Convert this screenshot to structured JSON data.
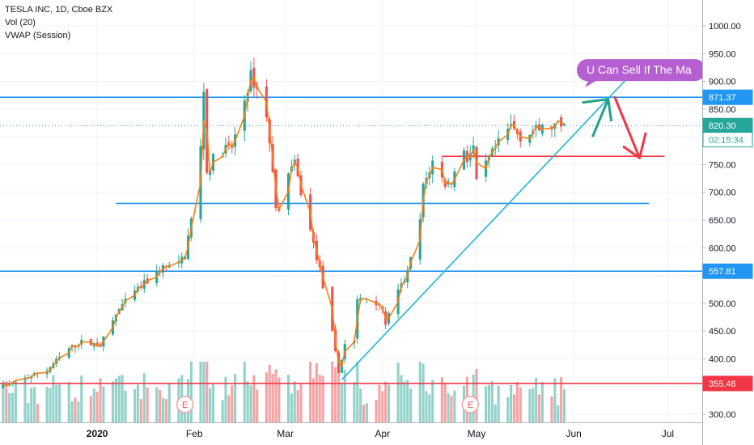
{
  "header": {
    "symbol": "TESLA INC, 1D, Cboe BZX",
    "indicator_volume": "Vol (20)",
    "indicator_vwap": "VWAP (Session)"
  },
  "colors": {
    "up": "#26a69a",
    "down": "#ef5350",
    "vol_up": "#93d2cb",
    "vol_down": "#f5a3a3",
    "vwap": "#ff7f0e",
    "hline_blue": "#2196f3",
    "hline_red": "#f23645",
    "trendline": "#22b5d6",
    "last_price": "#26a69a",
    "annotation_bg": "#b55fd0",
    "arrow_up": "#1fa38c",
    "arrow_down": "#f23645",
    "grid": "#f0f3fa",
    "axis_text": "#131722"
  },
  "chart_data": {
    "type": "candlestick",
    "y_axis": {
      "ticks": [
        "1000.00",
        "950.00",
        "900.00",
        "850.00",
        "800.00",
        "750.00",
        "700.00",
        "650.00",
        "600.00",
        "550.00",
        "500.00",
        "450.00",
        "400.00",
        "350.00",
        "300.00"
      ],
      "tick_values": [
        1000,
        950,
        900,
        850,
        800,
        750,
        700,
        650,
        600,
        550,
        500,
        450,
        400,
        350,
        300
      ],
      "ylim": [
        290,
        1045
      ]
    },
    "x_axis": {
      "labels": [
        "2020",
        "Feb",
        "Mar",
        "Apr",
        "May",
        "Jun",
        "Jul"
      ],
      "label_dates": [
        "2020-01-01",
        "2020-02-01",
        "2020-03-01",
        "2020-04-01",
        "2020-05-01",
        "2020-06-01",
        "2020-07-01"
      ],
      "xlim": [
        "2019-12-01",
        "2020-07-12"
      ]
    },
    "price_labels": [
      {
        "text": "871.37",
        "value": 871.37,
        "color": "#2196f3"
      },
      {
        "text": "820.30",
        "value": 820.3,
        "color": "#26a69a"
      },
      {
        "text": "02:15:34",
        "value": 795,
        "color": "#ffffff",
        "text_color": "#26a69a",
        "border": "#26a69a"
      },
      {
        "text": "557.81",
        "value": 557.81,
        "color": "#2196f3"
      },
      {
        "text": "355.46",
        "value": 355.46,
        "color": "#f23645"
      }
    ],
    "horizontal_lines": [
      {
        "value": 871.37,
        "start": "2019-12-01",
        "end": "2020-07-12",
        "color": "#2196f3"
      },
      {
        "value": 557.81,
        "start": "2019-12-01",
        "end": "2020-07-12",
        "color": "#2196f3"
      },
      {
        "value": 355.46,
        "start": "2019-12-01",
        "end": "2020-07-12",
        "color": "#f23645"
      },
      {
        "value": 680,
        "start": "2020-01-07",
        "end": "2020-06-25",
        "color": "#2196f3"
      },
      {
        "value": 765,
        "start": "2020-04-20",
        "end": "2020-06-30",
        "color": "#f23645"
      }
    ],
    "trendline": {
      "from": [
        "2020-03-19",
        362
      ],
      "to": [
        "2020-06-18",
        905
      ]
    },
    "arrow_up": {
      "points": [
        [
          "2020-06-07",
          800
        ],
        [
          "2020-06-12",
          868
        ],
        [
          "2020-06-04",
          862
        ],
        [
          "2020-06-12",
          868
        ],
        [
          "2020-06-13",
          828
        ]
      ]
    },
    "arrow_down": {
      "points": [
        [
          "2020-06-14",
          873
        ],
        [
          "2020-06-22",
          762
        ],
        [
          "2020-06-17",
          782
        ],
        [
          "2020-06-22",
          762
        ],
        [
          "2020-06-24",
          808
        ]
      ]
    },
    "annotation": {
      "text": "U Can Sell If The Ma",
      "date": "2020-06-02",
      "value": 921
    },
    "event_markers": [
      {
        "label": "E",
        "date": "2020-01-29"
      },
      {
        "label": "E",
        "date": "2020-04-29"
      }
    ],
    "price_anchors": [
      [
        "2019-12-02",
        350
      ],
      [
        "2019-12-09",
        365
      ],
      [
        "2019-12-16",
        380
      ],
      [
        "2019-12-23",
        418
      ],
      [
        "2019-12-27",
        430
      ],
      [
        "2020-01-02",
        425
      ],
      [
        "2020-01-08",
        490
      ],
      [
        "2020-01-13",
        520
      ],
      [
        "2020-01-22",
        565
      ],
      [
        "2020-01-27",
        570
      ],
      [
        "2020-01-29",
        590
      ],
      [
        "2020-01-31",
        650
      ],
      [
        "2020-02-03",
        780
      ],
      [
        "2020-02-04",
        887
      ],
      [
        "2020-02-05",
        735
      ],
      [
        "2020-02-07",
        760
      ],
      [
        "2020-02-11",
        780
      ],
      [
        "2020-02-13",
        780
      ],
      [
        "2020-02-19",
        910
      ],
      [
        "2020-02-21",
        885
      ],
      [
        "2020-02-24",
        840
      ],
      [
        "2020-02-27",
        680
      ],
      [
        "2020-02-28",
        660
      ],
      [
        "2020-03-02",
        740
      ],
      [
        "2020-03-04",
        750
      ],
      [
        "2020-03-06",
        700
      ],
      [
        "2020-03-09",
        630
      ],
      [
        "2020-03-12",
        560
      ],
      [
        "2020-03-16",
        445
      ],
      [
        "2020-03-18",
        375
      ],
      [
        "2020-03-20",
        427
      ],
      [
        "2020-03-23",
        434
      ],
      [
        "2020-03-24",
        505
      ],
      [
        "2020-03-27",
        510
      ],
      [
        "2020-03-31",
        500
      ],
      [
        "2020-04-02",
        465
      ],
      [
        "2020-04-06",
        520
      ],
      [
        "2020-04-09",
        555
      ],
      [
        "2020-04-13",
        650
      ],
      [
        "2020-04-14",
        710
      ],
      [
        "2020-04-17",
        755
      ],
      [
        "2020-04-21",
        715
      ],
      [
        "2020-04-23",
        720
      ],
      [
        "2020-04-27",
        780
      ],
      [
        "2020-04-28",
        760
      ],
      [
        "2020-04-30",
        780
      ],
      [
        "2020-05-01",
        715
      ],
      [
        "2020-05-04",
        750
      ],
      [
        "2020-05-07",
        780
      ],
      [
        "2020-05-12",
        820
      ],
      [
        "2020-05-15",
        800
      ],
      [
        "2020-05-19",
        810
      ],
      [
        "2020-05-22",
        815
      ],
      [
        "2020-05-27",
        820
      ],
      [
        "2020-05-29",
        818
      ]
    ],
    "volume_range": [
      0,
      1
    ]
  }
}
